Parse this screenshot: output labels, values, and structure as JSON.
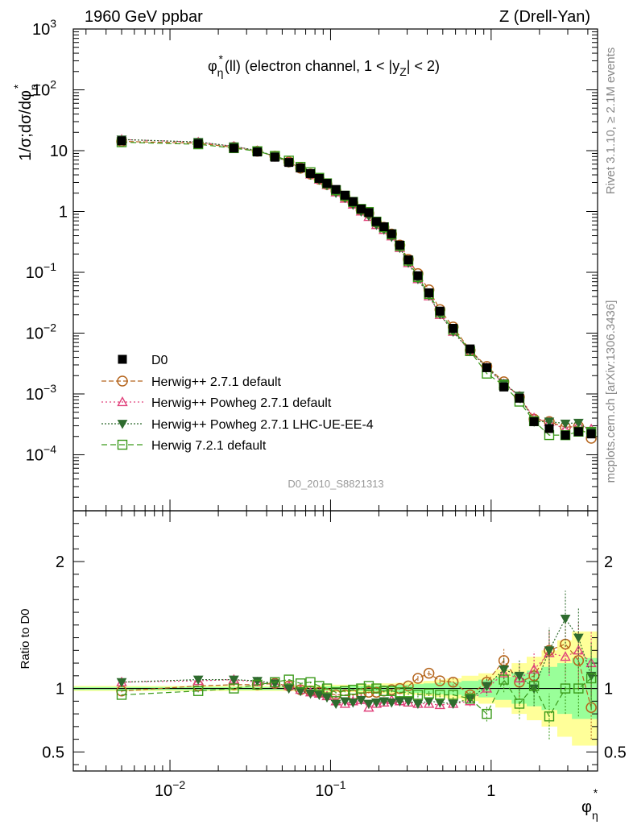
{
  "header": {
    "left": "1960 GeV ppbar",
    "right": "Z (Drell-Yan)",
    "ylabel_top": "1/σ;dσ/dφ",
    "ylabel_top_sup": "*",
    "ylabel_top_sub": "η",
    "ylabel_ratio": "Ratio to D0",
    "xlabel_main": "φ",
    "xlabel_sup": "*",
    "xlabel_sub": "η"
  },
  "plot_title": {
    "phi": "φ",
    "sup": "*",
    "sub": "η",
    "after": "(ll) (electron channel, 1 < |y",
    "y_sub": "Z",
    "tail": "| < 2)"
  },
  "side_labels": {
    "rivet": "Rivet 3.1.10, ≥ 2.1M events",
    "mcplots": "mcplots.cern.ch [arXiv:1306.3436]"
  },
  "watermark": "D0_2010_S8821313",
  "colors": {
    "data": "#000000",
    "herwigpp": "#b5651d",
    "powheg": "#e0407a",
    "powheg_ue": "#2e6b2e",
    "herwig7": "#3a9a1a",
    "band_outer": "#ffff99",
    "band_inner": "#99ff99"
  },
  "chart_data": {
    "type": "line",
    "x_scale": "log",
    "xlim": [
      0.0025,
      4.6
    ],
    "main": {
      "y_scale": "log",
      "ylim": [
        1.2e-05,
        1000
      ],
      "x_ticks": [
        {
          "v": 0.01,
          "base": "10",
          "exp": "−2"
        },
        {
          "v": 0.1,
          "base": "10",
          "exp": "−1"
        },
        {
          "v": 1,
          "base": "1",
          "exp": ""
        }
      ],
      "y_ticks": [
        {
          "v": 0.0001,
          "base": "10",
          "exp": "−4"
        },
        {
          "v": 0.001,
          "base": "10",
          "exp": "−3"
        },
        {
          "v": 0.01,
          "base": "10",
          "exp": "−2"
        },
        {
          "v": 0.1,
          "base": "10",
          "exp": "−1"
        },
        {
          "v": 1,
          "base": "1",
          "exp": ""
        },
        {
          "v": 10,
          "base": "10",
          "exp": ""
        },
        {
          "v": 100,
          "base": "10",
          "exp": "2"
        },
        {
          "v": 1000,
          "base": "10",
          "exp": "3"
        }
      ]
    },
    "ratio": {
      "ylim": [
        0.35,
        2.4
      ],
      "y_ticks": [
        {
          "v": 0.5,
          "label": "0.5"
        },
        {
          "v": 1,
          "label": "1"
        },
        {
          "v": 2,
          "label": "2"
        }
      ]
    },
    "x": [
      0.005,
      0.015,
      0.025,
      0.035,
      0.045,
      0.055,
      0.065,
      0.075,
      0.085,
      0.095,
      0.108,
      0.123,
      0.138,
      0.155,
      0.173,
      0.193,
      0.215,
      0.24,
      0.27,
      0.305,
      0.35,
      0.41,
      0.48,
      0.58,
      0.74,
      0.94,
      1.2,
      1.5,
      1.85,
      2.3,
      2.9,
      3.5,
      4.2
    ],
    "data_values": [
      14.5,
      13.0,
      11.0,
      9.5,
      7.8,
      6.4,
      5.2,
      4.2,
      3.5,
      2.9,
      2.3,
      1.85,
      1.45,
      1.1,
      0.96,
      0.68,
      0.56,
      0.43,
      0.28,
      0.16,
      0.088,
      0.046,
      0.023,
      0.012,
      0.0055,
      0.0027,
      0.0013,
      0.00085,
      0.00035,
      0.00027,
      0.00021,
      0.00024,
      0.00022
    ],
    "band_outer": [
      0.02,
      0.02,
      0.02,
      0.02,
      0.02,
      0.02,
      0.025,
      0.025,
      0.025,
      0.03,
      0.03,
      0.03,
      0.03,
      0.035,
      0.035,
      0.04,
      0.04,
      0.04,
      0.045,
      0.05,
      0.05,
      0.06,
      0.07,
      0.08,
      0.1,
      0.12,
      0.15,
      0.2,
      0.25,
      0.3,
      0.38,
      0.45,
      0.45
    ],
    "band_inner": [
      0.012,
      0.012,
      0.012,
      0.012,
      0.012,
      0.012,
      0.015,
      0.015,
      0.015,
      0.018,
      0.018,
      0.018,
      0.02,
      0.02,
      0.022,
      0.025,
      0.025,
      0.025,
      0.03,
      0.03,
      0.035,
      0.04,
      0.045,
      0.05,
      0.06,
      0.07,
      0.09,
      0.12,
      0.14,
      0.17,
      0.2,
      0.24,
      0.24
    ],
    "series": [
      {
        "name": "D0",
        "key": "data",
        "marker": "square_filled",
        "dash": ""
      },
      {
        "name": "Herwig++ 2.7.1 default",
        "key": "herwigpp",
        "marker": "circle_open",
        "dash": "6,3",
        "ratio": [
          0.98,
          1.02,
          1.03,
          1.03,
          1.04,
          1.02,
          0.99,
          0.98,
          0.97,
          0.96,
          0.95,
          0.95,
          0.95,
          0.96,
          0.97,
          0.97,
          0.98,
          0.99,
          1.0,
          1.02,
          1.08,
          1.12,
          1.06,
          1.05,
          0.95,
          1.05,
          1.22,
          1.05,
          1.1,
          1.3,
          1.35,
          1.22,
          0.85
        ],
        "err": [
          0.01,
          0.01,
          0.01,
          0.01,
          0.01,
          0.01,
          0.01,
          0.01,
          0.01,
          0.01,
          0.01,
          0.01,
          0.01,
          0.01,
          0.01,
          0.01,
          0.01,
          0.01,
          0.01,
          0.01,
          0.02,
          0.02,
          0.02,
          0.03,
          0.04,
          0.06,
          0.1,
          0.12,
          0.14,
          0.16,
          0.2,
          0.22,
          0.25
        ]
      },
      {
        "name": "Herwig++ Powheg 2.7.1 default",
        "key": "powheg",
        "marker": "triangle_open",
        "dash": "2,3",
        "ratio": [
          1.05,
          1.06,
          1.07,
          1.05,
          1.04,
          1.02,
          0.99,
          0.97,
          0.96,
          0.94,
          0.9,
          0.88,
          0.9,
          0.91,
          0.85,
          0.88,
          0.89,
          0.91,
          0.9,
          0.89,
          0.88,
          0.88,
          0.87,
          0.88,
          0.9,
          1.0,
          1.12,
          1.08,
          1.15,
          1.28,
          1.25,
          1.3,
          1.2
        ],
        "err": [
          0.01,
          0.01,
          0.01,
          0.01,
          0.01,
          0.01,
          0.01,
          0.01,
          0.01,
          0.01,
          0.01,
          0.01,
          0.01,
          0.01,
          0.01,
          0.01,
          0.01,
          0.01,
          0.01,
          0.02,
          0.02,
          0.02,
          0.02,
          0.03,
          0.04,
          0.06,
          0.1,
          0.12,
          0.14,
          0.18,
          0.2,
          0.22,
          0.25
        ]
      },
      {
        "name": "Herwig++ Powheg 2.7.1 LHC-UE-EE-4",
        "key": "powheg_ue",
        "marker": "triangle_down_filled",
        "dash": "2,2",
        "ratio": [
          1.05,
          1.07,
          1.07,
          1.06,
          1.04,
          1.0,
          0.98,
          0.96,
          0.95,
          0.93,
          0.88,
          0.9,
          0.89,
          0.91,
          0.88,
          0.89,
          0.9,
          0.89,
          0.9,
          0.9,
          0.88,
          0.9,
          0.89,
          0.88,
          0.92,
          1.02,
          1.15,
          1.1,
          1.0,
          1.3,
          1.55,
          1.4,
          1.1
        ],
        "err": [
          0.01,
          0.01,
          0.01,
          0.01,
          0.01,
          0.01,
          0.01,
          0.01,
          0.01,
          0.01,
          0.01,
          0.01,
          0.01,
          0.01,
          0.01,
          0.01,
          0.01,
          0.01,
          0.01,
          0.02,
          0.02,
          0.02,
          0.02,
          0.03,
          0.04,
          0.06,
          0.1,
          0.12,
          0.14,
          0.18,
          0.22,
          0.24,
          0.26
        ]
      },
      {
        "name": "Herwig 7.2.1 default",
        "key": "herwig7",
        "marker": "square_open",
        "dash": "7,4",
        "ratio": [
          0.95,
          0.98,
          1.0,
          1.03,
          1.05,
          1.07,
          1.04,
          1.05,
          1.02,
          1.0,
          0.97,
          0.98,
          0.99,
          1.0,
          1.02,
          1.0,
          0.98,
          0.98,
          0.97,
          0.97,
          0.95,
          0.96,
          0.95,
          0.95,
          0.92,
          0.8,
          1.07,
          0.88,
          1.02,
          0.78,
          1.0,
          1.0,
          1.08
        ],
        "err": [
          0.01,
          0.01,
          0.01,
          0.01,
          0.01,
          0.01,
          0.01,
          0.01,
          0.01,
          0.01,
          0.01,
          0.01,
          0.01,
          0.01,
          0.01,
          0.01,
          0.01,
          0.01,
          0.01,
          0.02,
          0.02,
          0.02,
          0.02,
          0.03,
          0.04,
          0.06,
          0.1,
          0.12,
          0.14,
          0.18,
          0.2,
          0.22,
          0.25
        ]
      }
    ],
    "legend_position": "lower-left"
  }
}
